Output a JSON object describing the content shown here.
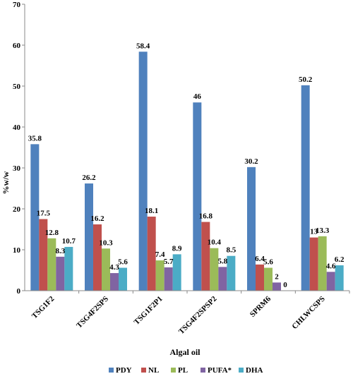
{
  "chart_data": {
    "type": "bar",
    "xlabel": "Algal oil",
    "ylabel": "%w/w",
    "ylim": [
      0,
      70
    ],
    "yticks": [
      0,
      10,
      20,
      30,
      40,
      50,
      60,
      70
    ],
    "grid": false,
    "legend_position": "bottom",
    "categories": [
      "TSG1F2",
      "TSG4F2SPS",
      "TSG1F2P1",
      "TSG4F2SPSP2",
      "SPRM6",
      "CHLWCSPS"
    ],
    "series": [
      {
        "name": "PDY",
        "color": "#4F81BD",
        "values": [
          35.8,
          26.2,
          58.4,
          46,
          30.2,
          50.2
        ]
      },
      {
        "name": "NL",
        "color": "#C0504D",
        "values": [
          17.5,
          16.2,
          18.1,
          16.8,
          6.4,
          13
        ]
      },
      {
        "name": "PL",
        "color": "#9BBB59",
        "values": [
          12.8,
          10.3,
          7.4,
          10.4,
          5.6,
          13.3
        ]
      },
      {
        "name": "PUFA*",
        "color": "#8064A2",
        "values": [
          8.3,
          4.3,
          5.7,
          5.8,
          2,
          4.6
        ]
      },
      {
        "name": "DHA",
        "color": "#4BACC6",
        "values": [
          10.7,
          5.6,
          8.9,
          8.5,
          0,
          6.2
        ]
      }
    ]
  }
}
